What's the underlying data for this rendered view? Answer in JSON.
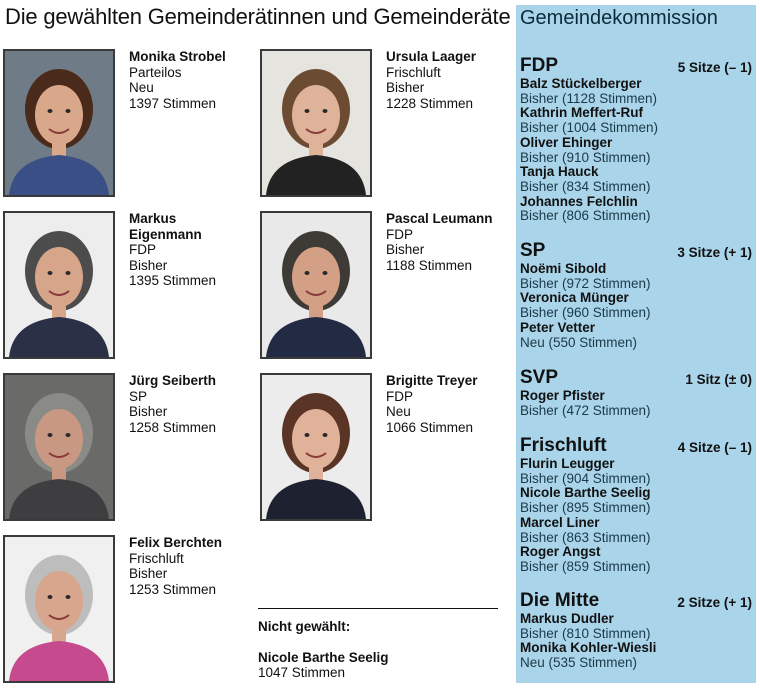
{
  "title": "Die gewählten Gemeinderätinnen und Gemeinderäte",
  "elected": [
    {
      "name": [
        "Monika Strobel"
      ],
      "party": "Parteilos",
      "status": "Neu",
      "votes": "1397 Stimmen",
      "photo": {
        "bg": "#6f7b86",
        "hair": "#4a2a1a",
        "skin": "#d9a88a",
        "shirt": "#3a4f86"
      }
    },
    {
      "name": [
        "Ursula Laager"
      ],
      "party": "Frischluft",
      "status": "Bisher",
      "votes": "1228 Stimmen",
      "photo": {
        "bg": "#e6e4df",
        "hair": "#6b4b32",
        "skin": "#dfb29a",
        "shirt": "#222222"
      }
    },
    {
      "name": [
        "Markus",
        "Eigenmann"
      ],
      "party": "FDP",
      "status": "Bisher",
      "votes": "1395 Stimmen",
      "photo": {
        "bg": "#ededed",
        "hair": "#4c4c4c",
        "skin": "#d7a58a",
        "shirt": "#2a3146"
      }
    },
    {
      "name": [
        "Pascal Leumann"
      ],
      "party": "FDP",
      "status": "Bisher",
      "votes": "1188 Stimmen",
      "photo": {
        "bg": "#e9e9e9",
        "hair": "#3e3a36",
        "skin": "#d3a085",
        "shirt": "#232a44"
      }
    },
    {
      "name": [
        "Jürg Seiberth"
      ],
      "party": "SP",
      "status": "Bisher",
      "votes": "1258 Stimmen",
      "photo": {
        "bg": "#6a6a68",
        "hair": "#8a8a86",
        "skin": "#c99882",
        "shirt": "#3e3e40"
      }
    },
    {
      "name": [
        "Brigitte Treyer"
      ],
      "party": "FDP",
      "status": "Neu",
      "votes": "1066 Stimmen",
      "photo": {
        "bg": "#ececec",
        "hair": "#5a3424",
        "skin": "#e1b29a",
        "shirt": "#1e2230"
      }
    },
    {
      "name": [
        "Felix Berchten"
      ],
      "party": "Frischluft",
      "status": "Bisher",
      "votes": "1253 Stimmen",
      "photo": {
        "bg": "#f0f0f0",
        "hair": "#bdbdbd",
        "skin": "#d8a68c",
        "shirt": "#c54a8e"
      }
    }
  ],
  "not_elected": {
    "label": "Nicht gewählt:",
    "name": "Nicole Barthe Seelig",
    "votes": "1047 Stimmen"
  },
  "commission": {
    "title": "Gemeindekommission",
    "background_color": "#a9d4e9",
    "parties": [
      {
        "name": "FDP",
        "seats": "5 Sitze (– 1)",
        "members": [
          {
            "name": "Balz Stückelberger",
            "status": "Bisher (1128 Stimmen)"
          },
          {
            "name": "Kathrin Meffert-Ruf",
            "status": "Bisher (1004 Stimmen)"
          },
          {
            "name": "Oliver Ehinger",
            "status": "Bisher (910 Stimmen)"
          },
          {
            "name": "Tanja Hauck",
            "status": "Bisher (834 Stimmen)"
          },
          {
            "name": "Johannes Felchlin",
            "status": "Bisher (806 Stimmen)"
          }
        ]
      },
      {
        "name": "SP",
        "seats": "3 Sitze (+ 1)",
        "members": [
          {
            "name": "Noëmi Sibold",
            "status": "Bisher (972 Stimmen)"
          },
          {
            "name": "Veronica Münger",
            "status": "Bisher (960 Stimmen)"
          },
          {
            "name": "Peter Vetter",
            "status": "Neu (550 Stimmen)"
          }
        ]
      },
      {
        "name": "SVP",
        "seats": "1 Sitz (± 0)",
        "members": [
          {
            "name": "Roger Pfister",
            "status": "Bisher (472 Stimmen)"
          }
        ]
      },
      {
        "name": "Frischluft",
        "seats": "4 Sitze (– 1)",
        "members": [
          {
            "name": "Flurin Leugger",
            "status": "Bisher (904 Stimmen)"
          },
          {
            "name": "Nicole Barthe Seelig",
            "status": "Bisher (895 Stimmen)"
          },
          {
            "name": "Marcel Liner",
            "status": "Bisher (863 Stimmen)"
          },
          {
            "name": "Roger Angst",
            "status": "Bisher (859 Stimmen)"
          }
        ]
      },
      {
        "name": "Die Mitte",
        "seats": "2 Sitze (+ 1)",
        "members": [
          {
            "name": "Markus Dudler",
            "status": "Bisher (810 Stimmen)"
          },
          {
            "name": "Monika Kohler-Wiesli",
            "status": "Neu (535 Stimmen)"
          }
        ]
      }
    ]
  }
}
